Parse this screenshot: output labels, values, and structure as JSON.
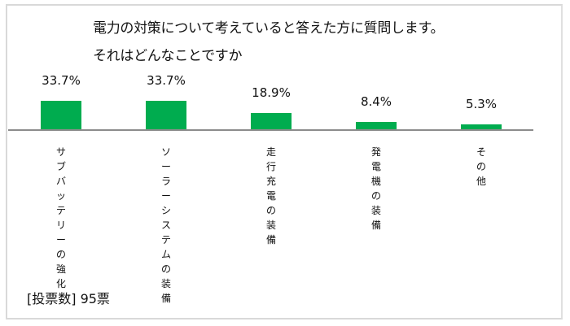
{
  "title": {
    "line1": "電力の対策について考えていると答えた方に質問します。",
    "line2": "それはどんなことですか"
  },
  "footer": {
    "votes_label": "[投票数] 95票"
  },
  "colors": {
    "bar": "#00ac4f",
    "axis": "#8c8c8c",
    "frame": "#d9d9d9"
  },
  "chart_data": {
    "type": "bar",
    "title": "電力の対策について考えていると答えた方に質問します。それはどんなことですか",
    "categories": [
      "サブバッテリーの強化",
      "ソーラーシステムの装備",
      "走行充電の装備",
      "発電機の装備",
      "その他"
    ],
    "values": [
      33.7,
      33.7,
      18.9,
      8.4,
      5.3
    ],
    "value_labels": [
      "33.7%",
      "33.7%",
      "18.9%",
      "8.4%",
      "5.3%"
    ],
    "unit": "%",
    "xlabel": "",
    "ylabel": "",
    "ylim": [
      0,
      40
    ],
    "grid": false,
    "legend": null,
    "annotation": "[投票数] 95票"
  }
}
